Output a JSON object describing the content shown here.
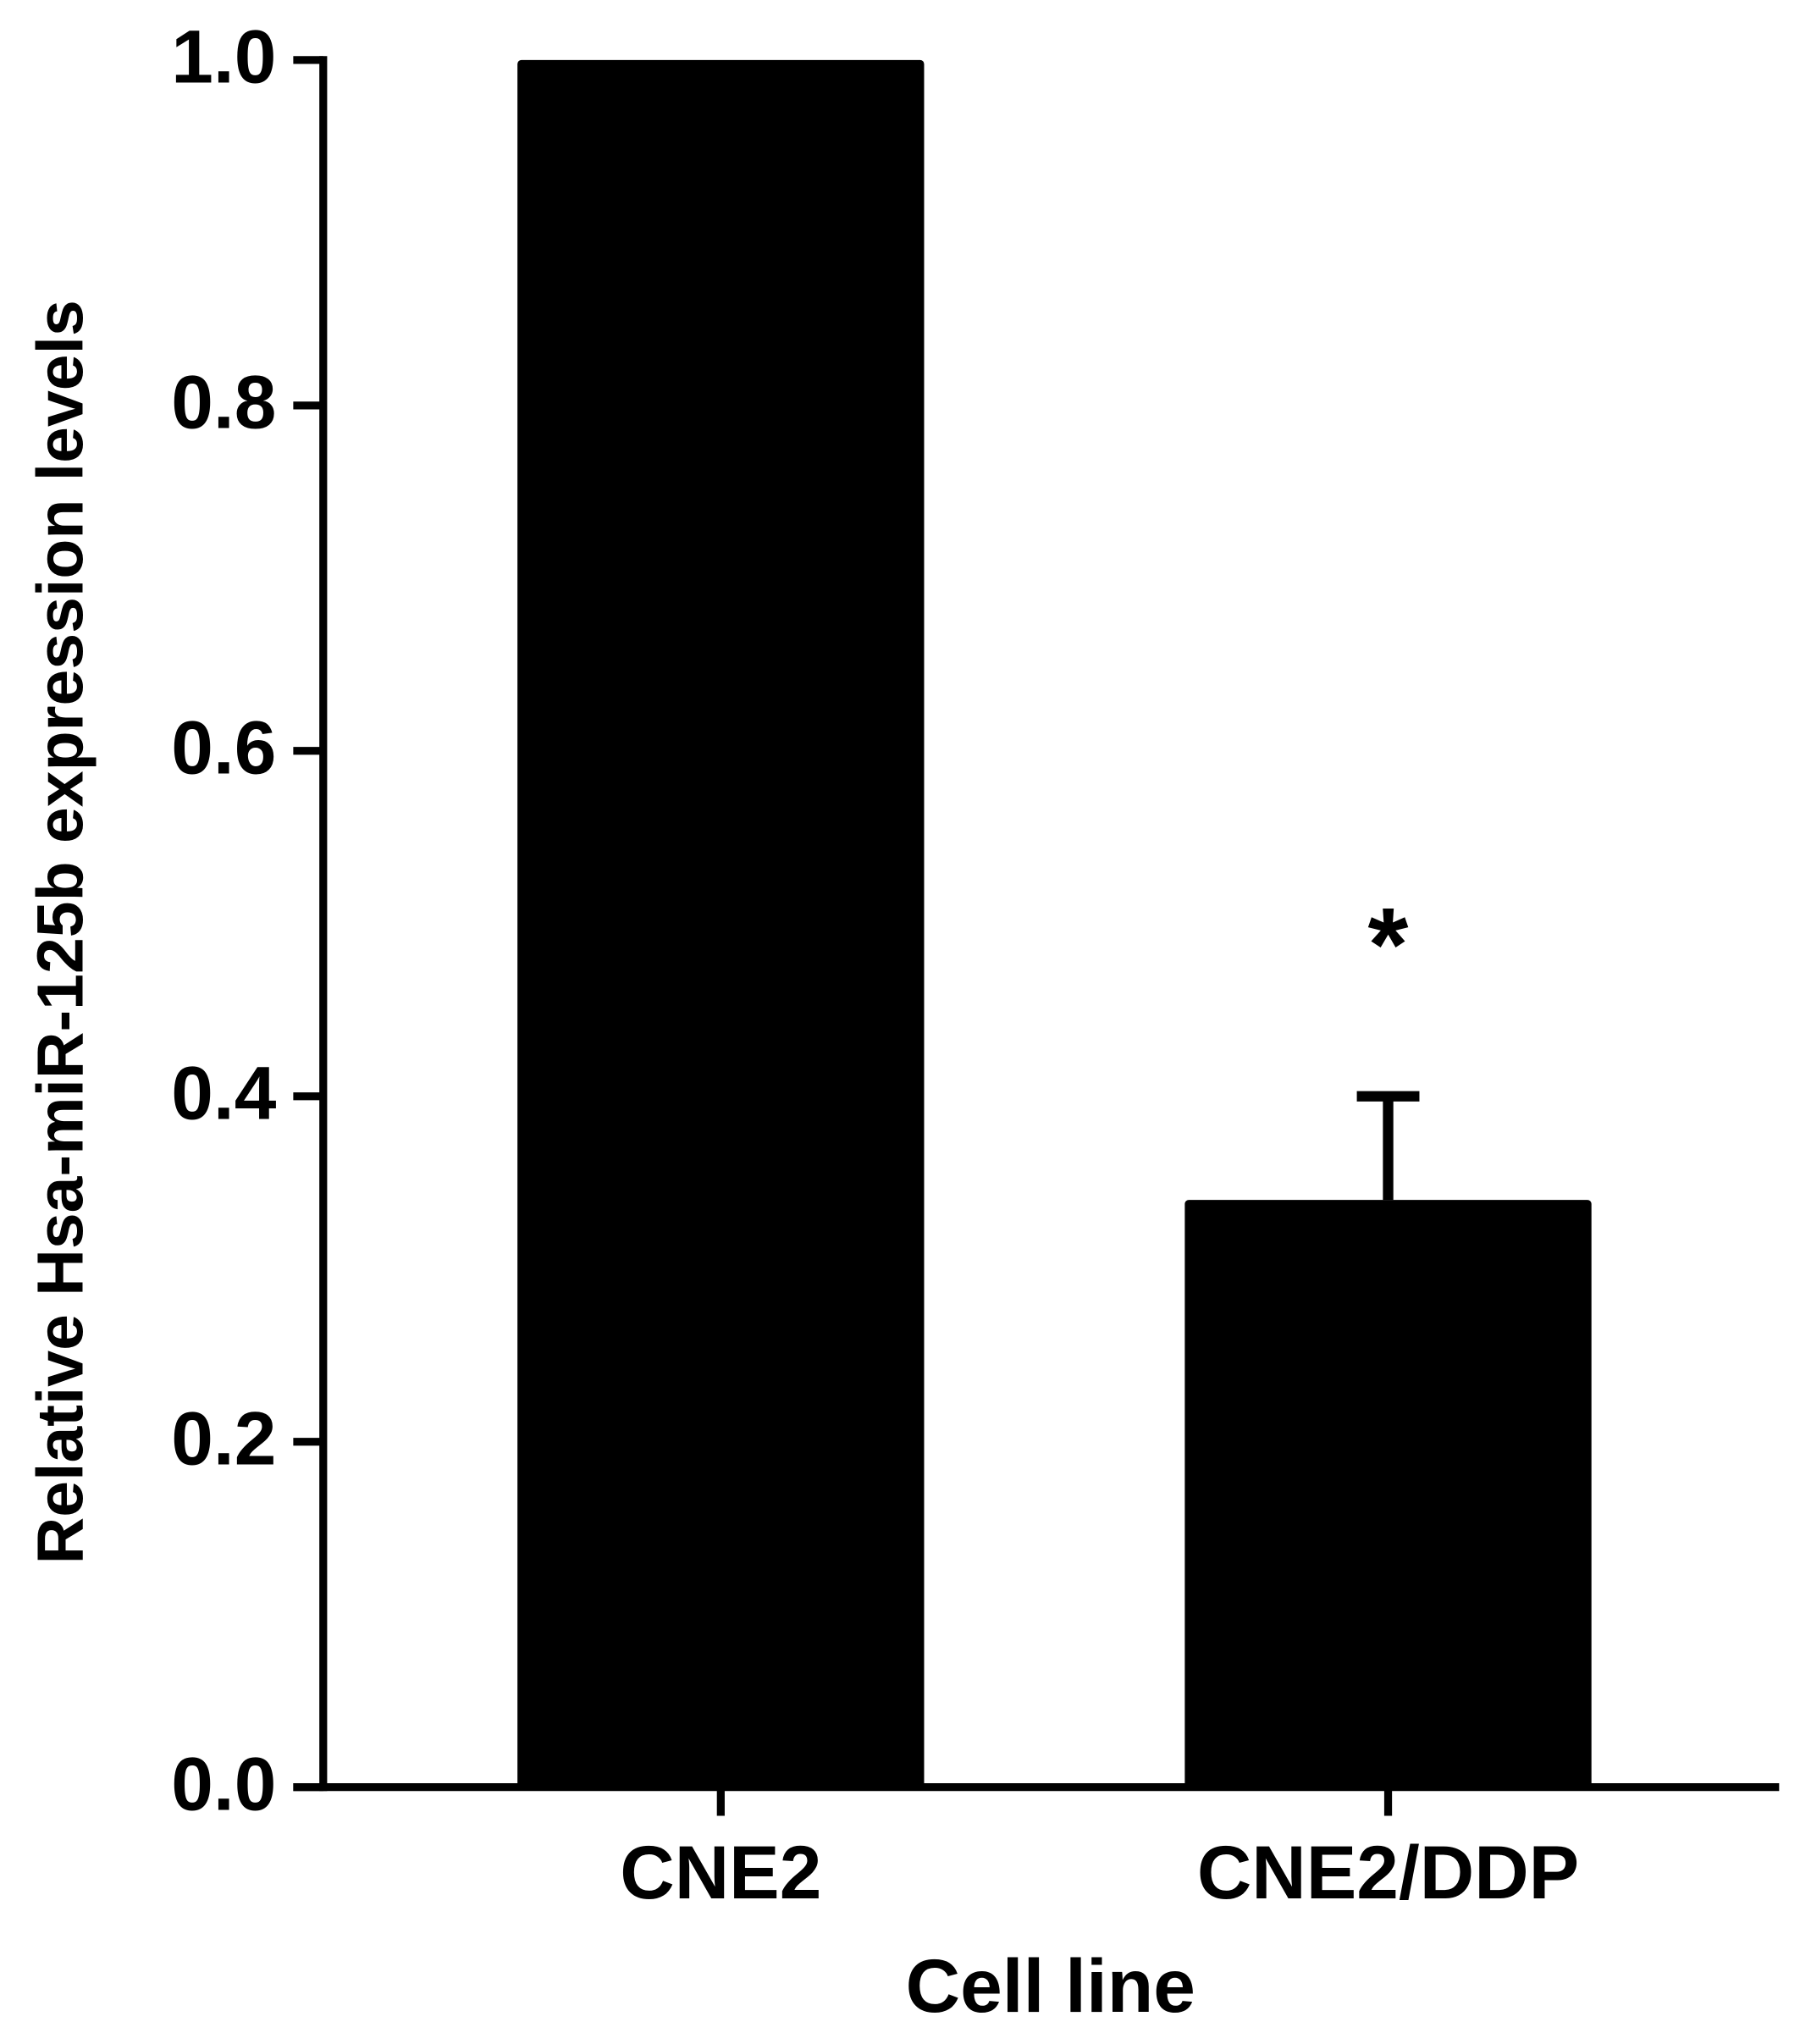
{
  "chart_data": {
    "type": "bar",
    "x_label": "Cell line",
    "y_label": "Relative Hsa-miR-125b expression levels",
    "categories": [
      "CNE2",
      "CNE2/DDP"
    ],
    "values": [
      1.0,
      0.34
    ],
    "errors": [
      0,
      0.06
    ],
    "significance_labels": [
      null,
      "*"
    ],
    "color": "#000000",
    "ylim": [
      0,
      1.0
    ],
    "yticks": [
      {
        "value": 0,
        "label": "0.0"
      },
      0.2,
      0.4,
      0.6,
      0.8,
      {
        "value": 1.0,
        "label": "1.0"
      }
    ],
    "grid": false
  }
}
